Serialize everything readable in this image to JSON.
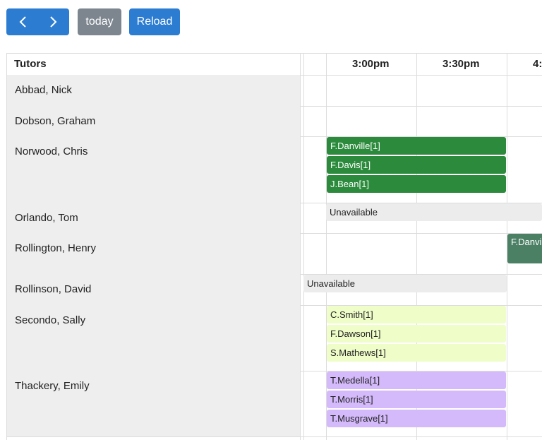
{
  "toolbar": {
    "today": "today",
    "reload": "Reload"
  },
  "table": {
    "header": {
      "tutors": "Tutors",
      "time_slots": [
        "3:00pm",
        "3:30pm",
        "4:"
      ]
    },
    "rows": [
      {
        "tutor": "Abbad, Nick",
        "events": []
      },
      {
        "tutor": "Dobson, Graham",
        "events": []
      },
      {
        "tutor": "Norwood, Chris",
        "events": [
          {
            "label": "F.Danville[1]",
            "color": "#2b8a3b"
          },
          {
            "label": "F.Davis[1]",
            "color": "#2b8a3b"
          },
          {
            "label": "J.Bean[1]",
            "color": "#2b8a3b"
          }
        ]
      },
      {
        "tutor": "Orlando, Tom",
        "events": [
          {
            "label": "Unavailable",
            "color": "#ececec"
          }
        ]
      },
      {
        "tutor": "Rollington, Henry",
        "events": [
          {
            "label": "F.Danvil",
            "color": "#4b8065"
          }
        ]
      },
      {
        "tutor": "Rollinson, David",
        "events": [
          {
            "label": "Unavailable",
            "color": "#ececec"
          }
        ]
      },
      {
        "tutor": "Secondo, Sally",
        "events": [
          {
            "label": "C.Smith[1]",
            "color": "#effdc9"
          },
          {
            "label": "F.Dawson[1]",
            "color": "#effdc9"
          },
          {
            "label": "S.Mathews[1]",
            "color": "#effdc9"
          }
        ]
      },
      {
        "tutor": "Thackery, Emily",
        "events": [
          {
            "label": "T.Medella[1]",
            "color": "#d4bafb"
          },
          {
            "label": "T.Morris[1]",
            "color": "#d4bafb"
          },
          {
            "label": "T.Musgrave[1]",
            "color": "#d4bafb"
          }
        ]
      }
    ]
  }
}
